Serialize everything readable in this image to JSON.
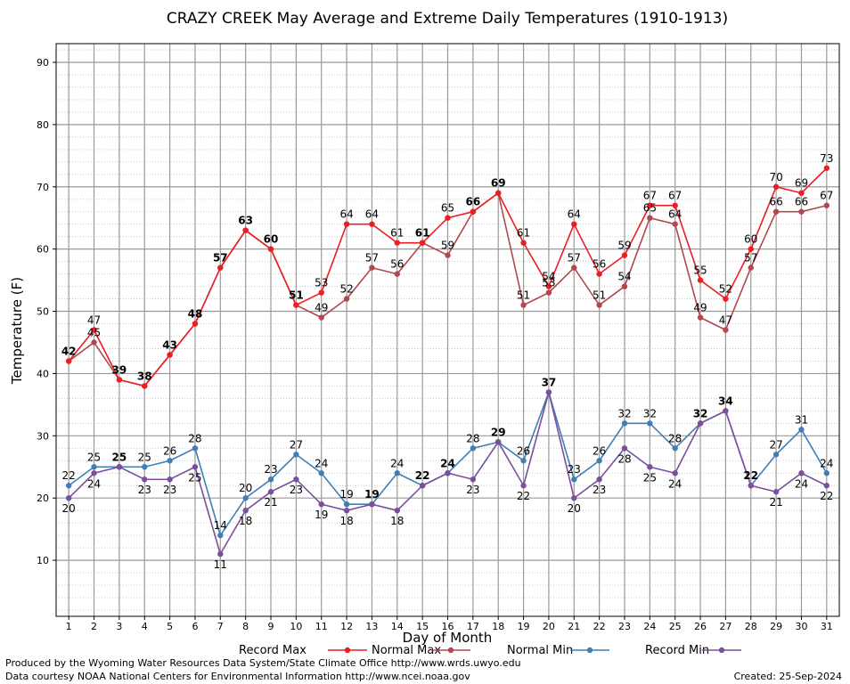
{
  "chart_data": {
    "type": "line",
    "title": "CRAZY CREEK May Average and Extreme Daily Temperatures (1910-1913)",
    "xlabel": "Day of Month",
    "ylabel": "Temperature (F)",
    "x": [
      1,
      2,
      3,
      4,
      5,
      6,
      7,
      8,
      9,
      10,
      11,
      12,
      13,
      14,
      15,
      16,
      17,
      18,
      19,
      20,
      21,
      22,
      23,
      24,
      25,
      26,
      27,
      28,
      29,
      30,
      31
    ],
    "xlim": [
      0.5,
      31.5
    ],
    "ylim": [
      1,
      93
    ],
    "yticks": [
      10,
      20,
      30,
      40,
      50,
      60,
      70,
      80,
      90
    ],
    "grid": true,
    "legend_position": "bottom",
    "series": [
      {
        "name": "Record Max",
        "color": "#ee1c25",
        "values": [
          42,
          47,
          39,
          38,
          43,
          48,
          57,
          63,
          60,
          51,
          53,
          64,
          64,
          61,
          61,
          65,
          66,
          69,
          61,
          54,
          64,
          56,
          59,
          67,
          67,
          55,
          52,
          60,
          70,
          69,
          73
        ]
      },
      {
        "name": "Normal Max",
        "color": "#b0484e",
        "values": [
          42,
          45,
          39,
          38,
          43,
          48,
          57,
          63,
          60,
          51,
          49,
          52,
          57,
          56,
          61,
          59,
          66,
          69,
          51,
          53,
          57,
          51,
          54,
          65,
          64,
          49,
          47,
          57,
          66,
          66,
          67
        ]
      },
      {
        "name": "Normal Min",
        "color": "#3f7fb5",
        "values": [
          22,
          25,
          25,
          25,
          26,
          28,
          14,
          20,
          23,
          27,
          24,
          19,
          19,
          24,
          22,
          24,
          28,
          29,
          26,
          37,
          23,
          26,
          32,
          32,
          28,
          32,
          34,
          22,
          27,
          31,
          24
        ]
      },
      {
        "name": "Record Min",
        "color": "#7b4f9b",
        "values": [
          20,
          24,
          25,
          23,
          23,
          25,
          11,
          18,
          21,
          23,
          19,
          18,
          19,
          18,
          22,
          24,
          23,
          29,
          22,
          37,
          20,
          23,
          28,
          25,
          24,
          32,
          34,
          22,
          21,
          24,
          22
        ]
      }
    ]
  },
  "footer": {
    "producer": "Produced by the Wyoming Water Resources Data System/State Climate Office http://www.wrds.uwyo.edu",
    "courtesy": "Data courtesy NOAA National Centers for Environmental Information http://www.ncei.noaa.gov",
    "created": "Created:  25-Sep-2024"
  }
}
